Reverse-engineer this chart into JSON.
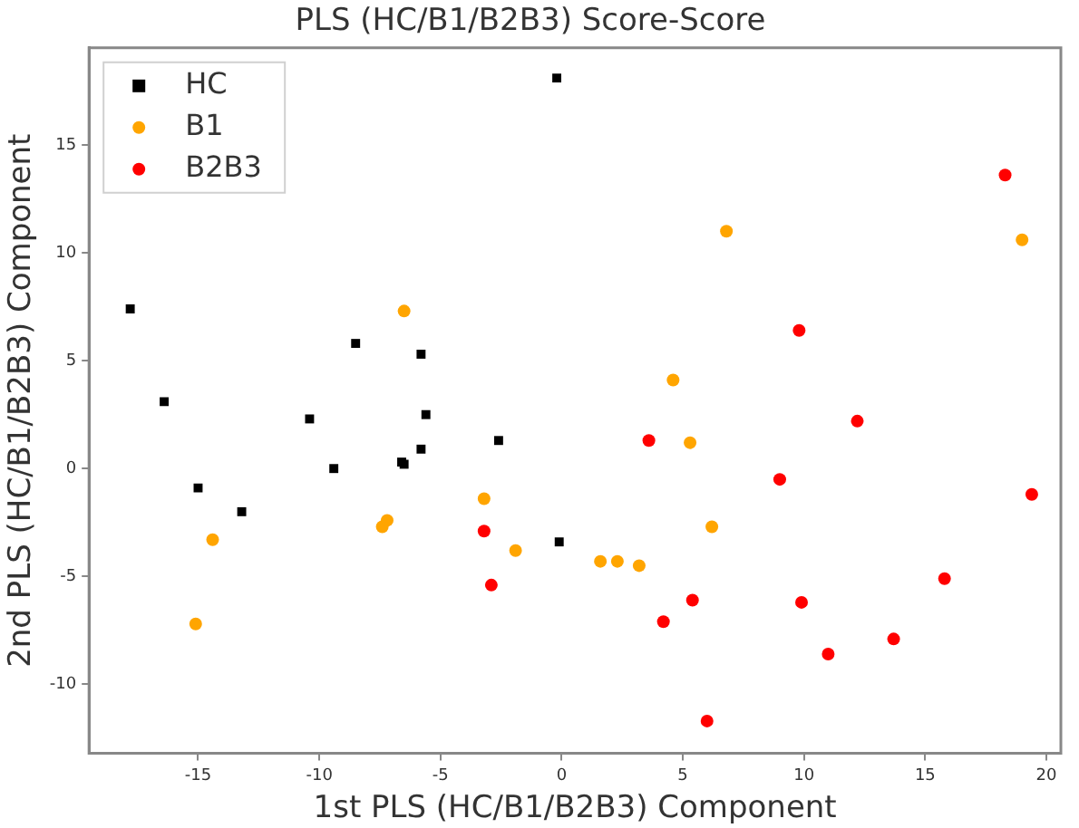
{
  "chart_data": {
    "type": "scatter",
    "title": "PLS (HC/B1/B2B3) Score-Score",
    "xlabel": "1st PLS (HC/B1/B2B3) Component",
    "ylabel": "2nd PLS (HC/B1/B2B3) Component",
    "xlim": [
      -19.5,
      20.6
    ],
    "ylim": [
      -13.2,
      19.5
    ],
    "xticks": [
      -15,
      -10,
      -5,
      0,
      5,
      10,
      15,
      20
    ],
    "yticks": [
      -10,
      -5,
      0,
      5,
      10,
      15
    ],
    "grid": false,
    "legend": "top left",
    "series": [
      {
        "name": "HC",
        "color": "#000000",
        "marker": "square",
        "x": [
          -17.8,
          -16.4,
          -15,
          -13.2,
          -10.4,
          -9.4,
          -8.5,
          -6.6,
          -6.5,
          -5.8,
          -5.8,
          -5.6,
          -2.6,
          -0.2,
          -0.1
        ],
        "values": [
          7.4,
          3.1,
          -0.9,
          -2,
          2.3,
          0,
          5.8,
          0.3,
          0.2,
          5.3,
          0.9,
          2.5,
          1.3,
          18.1,
          -3.4
        ]
      },
      {
        "name": "B1",
        "color": "#ffa500",
        "marker": "circle",
        "x": [
          -15.1,
          -14.4,
          -7.4,
          -7.2,
          -6.5,
          -3.2,
          -1.9,
          1.6,
          2.3,
          3.2,
          4.6,
          5.3,
          6.2,
          6.8,
          19.0
        ],
        "values": [
          -7.2,
          -3.3,
          -2.7,
          -2.4,
          7.3,
          -1.4,
          -3.8,
          -4.3,
          -4.3,
          -4.5,
          4.1,
          1.2,
          -2.7,
          11.0,
          10.6
        ]
      },
      {
        "name": "B2B3",
        "color": "#ff0000",
        "marker": "circle",
        "x": [
          -3.2,
          -2.9,
          3.6,
          4.2,
          5.4,
          6.0,
          9.0,
          9.8,
          9.9,
          11.0,
          12.2,
          13.7,
          15.8,
          18.3,
          19.4
        ],
        "values": [
          -2.9,
          -5.4,
          1.3,
          -7.1,
          -6.1,
          -11.7,
          -0.5,
          6.4,
          -6.2,
          -8.6,
          2.2,
          -7.9,
          -5.1,
          13.6,
          -1.2
        ]
      }
    ]
  }
}
